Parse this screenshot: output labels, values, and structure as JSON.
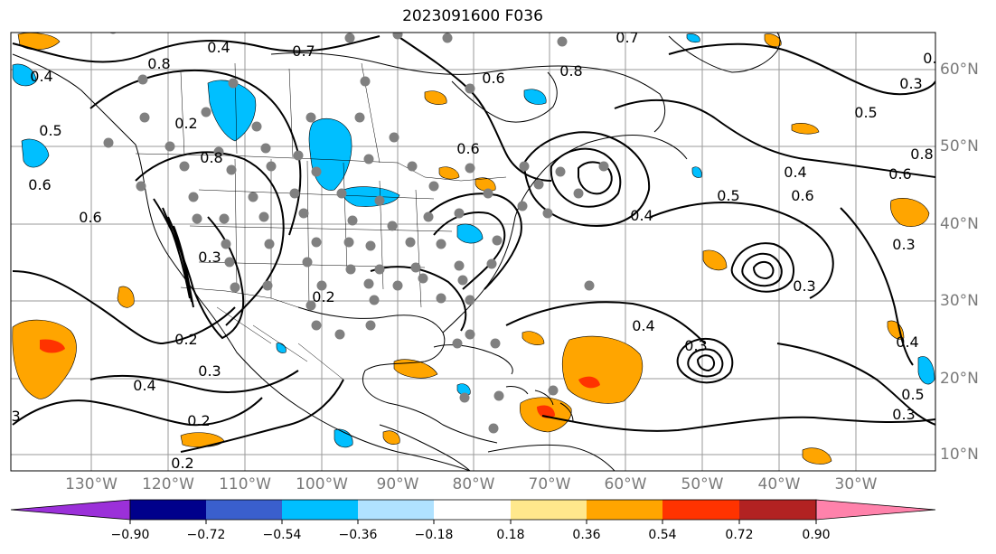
{
  "title": "2023091600 F036",
  "lat_ticks": [
    "60°N",
    "50°N",
    "40°N",
    "30°N",
    "20°N",
    "10°N"
  ],
  "lon_ticks": [
    "130°W",
    "120°W",
    "110°W",
    "100°W",
    "90°W",
    "80°W",
    "70°W",
    "60°W",
    "50°W",
    "40°W",
    "30°W"
  ],
  "colorbar": {
    "ticks": [
      "−0.90",
      "−0.72",
      "−0.54",
      "−0.36",
      "−0.18",
      "0.18",
      "0.36",
      "0.54",
      "0.72",
      "0.90"
    ],
    "colors": [
      "#9b30d9",
      "#00008b",
      "#3a5fcd",
      "#00bfff",
      "#b0e2ff",
      "#ffffff",
      "#ffe88c",
      "#ffa500",
      "#ff3300",
      "#b22222",
      "#ff82ab"
    ]
  },
  "contour_labels": [
    {
      "text": "0.7"
    },
    {
      "text": "0.8"
    },
    {
      "text": "0.4"
    },
    {
      "text": "0.5"
    },
    {
      "text": "0.6"
    },
    {
      "text": "0.6"
    },
    {
      "text": "0.8"
    },
    {
      "text": "0.3"
    },
    {
      "text": "0.2"
    },
    {
      "text": "0.3"
    },
    {
      "text": "0.4"
    },
    {
      "text": "0.2"
    },
    {
      "text": "0.2"
    },
    {
      "text": "0.3"
    },
    {
      "text": "0.7"
    },
    {
      "text": "0.8"
    },
    {
      "text": "0.6"
    },
    {
      "text": "0.6"
    },
    {
      "text": "0.4"
    },
    {
      "text": "0.5"
    },
    {
      "text": "0.4"
    },
    {
      "text": "0.6"
    },
    {
      "text": "0.5"
    },
    {
      "text": "0.3"
    },
    {
      "text": "0.6"
    },
    {
      "text": "0.8"
    },
    {
      "text": "0.4"
    },
    {
      "text": "0.3"
    },
    {
      "text": "0.3"
    },
    {
      "text": "0.4"
    },
    {
      "text": "0.3"
    },
    {
      "text": "0.4"
    },
    {
      "text": "0.5"
    },
    {
      "text": "0.3"
    },
    {
      "text": "0.2"
    },
    {
      "text": "0.2"
    },
    {
      "text": "0.7"
    },
    {
      "text": "0.4"
    }
  ]
}
